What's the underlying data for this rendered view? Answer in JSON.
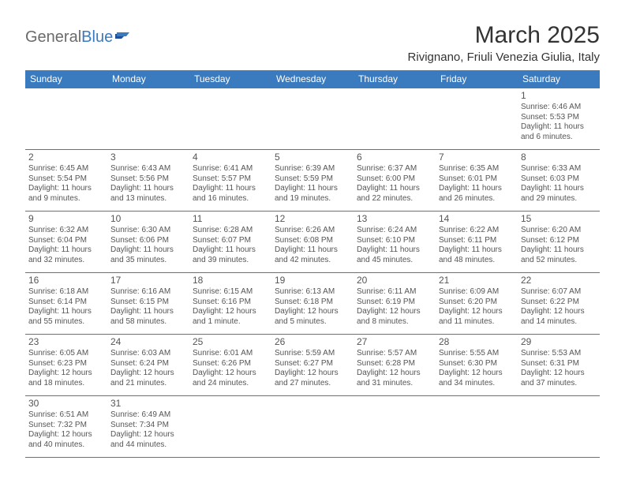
{
  "logo": {
    "part1": "General",
    "part2": "Blue"
  },
  "title": "March 2025",
  "location": "Rivignano, Friuli Venezia Giulia, Italy",
  "colors": {
    "header_bg": "#3a7bbf",
    "header_text": "#ffffff",
    "border": "#3a7bbf",
    "text": "#555555",
    "page_bg": "#ffffff"
  },
  "fonts": {
    "title_size": 30,
    "location_size": 15,
    "dayhdr_size": 12,
    "cell_size": 10
  },
  "day_headers": [
    "Sunday",
    "Monday",
    "Tuesday",
    "Wednesday",
    "Thursday",
    "Friday",
    "Saturday"
  ],
  "weeks": [
    [
      null,
      null,
      null,
      null,
      null,
      null,
      {
        "n": "1",
        "sr": "Sunrise: 6:46 AM",
        "ss": "Sunset: 5:53 PM",
        "d1": "Daylight: 11 hours",
        "d2": "and 6 minutes."
      }
    ],
    [
      {
        "n": "2",
        "sr": "Sunrise: 6:45 AM",
        "ss": "Sunset: 5:54 PM",
        "d1": "Daylight: 11 hours",
        "d2": "and 9 minutes."
      },
      {
        "n": "3",
        "sr": "Sunrise: 6:43 AM",
        "ss": "Sunset: 5:56 PM",
        "d1": "Daylight: 11 hours",
        "d2": "and 13 minutes."
      },
      {
        "n": "4",
        "sr": "Sunrise: 6:41 AM",
        "ss": "Sunset: 5:57 PM",
        "d1": "Daylight: 11 hours",
        "d2": "and 16 minutes."
      },
      {
        "n": "5",
        "sr": "Sunrise: 6:39 AM",
        "ss": "Sunset: 5:59 PM",
        "d1": "Daylight: 11 hours",
        "d2": "and 19 minutes."
      },
      {
        "n": "6",
        "sr": "Sunrise: 6:37 AM",
        "ss": "Sunset: 6:00 PM",
        "d1": "Daylight: 11 hours",
        "d2": "and 22 minutes."
      },
      {
        "n": "7",
        "sr": "Sunrise: 6:35 AM",
        "ss": "Sunset: 6:01 PM",
        "d1": "Daylight: 11 hours",
        "d2": "and 26 minutes."
      },
      {
        "n": "8",
        "sr": "Sunrise: 6:33 AM",
        "ss": "Sunset: 6:03 PM",
        "d1": "Daylight: 11 hours",
        "d2": "and 29 minutes."
      }
    ],
    [
      {
        "n": "9",
        "sr": "Sunrise: 6:32 AM",
        "ss": "Sunset: 6:04 PM",
        "d1": "Daylight: 11 hours",
        "d2": "and 32 minutes."
      },
      {
        "n": "10",
        "sr": "Sunrise: 6:30 AM",
        "ss": "Sunset: 6:06 PM",
        "d1": "Daylight: 11 hours",
        "d2": "and 35 minutes."
      },
      {
        "n": "11",
        "sr": "Sunrise: 6:28 AM",
        "ss": "Sunset: 6:07 PM",
        "d1": "Daylight: 11 hours",
        "d2": "and 39 minutes."
      },
      {
        "n": "12",
        "sr": "Sunrise: 6:26 AM",
        "ss": "Sunset: 6:08 PM",
        "d1": "Daylight: 11 hours",
        "d2": "and 42 minutes."
      },
      {
        "n": "13",
        "sr": "Sunrise: 6:24 AM",
        "ss": "Sunset: 6:10 PM",
        "d1": "Daylight: 11 hours",
        "d2": "and 45 minutes."
      },
      {
        "n": "14",
        "sr": "Sunrise: 6:22 AM",
        "ss": "Sunset: 6:11 PM",
        "d1": "Daylight: 11 hours",
        "d2": "and 48 minutes."
      },
      {
        "n": "15",
        "sr": "Sunrise: 6:20 AM",
        "ss": "Sunset: 6:12 PM",
        "d1": "Daylight: 11 hours",
        "d2": "and 52 minutes."
      }
    ],
    [
      {
        "n": "16",
        "sr": "Sunrise: 6:18 AM",
        "ss": "Sunset: 6:14 PM",
        "d1": "Daylight: 11 hours",
        "d2": "and 55 minutes."
      },
      {
        "n": "17",
        "sr": "Sunrise: 6:16 AM",
        "ss": "Sunset: 6:15 PM",
        "d1": "Daylight: 11 hours",
        "d2": "and 58 minutes."
      },
      {
        "n": "18",
        "sr": "Sunrise: 6:15 AM",
        "ss": "Sunset: 6:16 PM",
        "d1": "Daylight: 12 hours",
        "d2": "and 1 minute."
      },
      {
        "n": "19",
        "sr": "Sunrise: 6:13 AM",
        "ss": "Sunset: 6:18 PM",
        "d1": "Daylight: 12 hours",
        "d2": "and 5 minutes."
      },
      {
        "n": "20",
        "sr": "Sunrise: 6:11 AM",
        "ss": "Sunset: 6:19 PM",
        "d1": "Daylight: 12 hours",
        "d2": "and 8 minutes."
      },
      {
        "n": "21",
        "sr": "Sunrise: 6:09 AM",
        "ss": "Sunset: 6:20 PM",
        "d1": "Daylight: 12 hours",
        "d2": "and 11 minutes."
      },
      {
        "n": "22",
        "sr": "Sunrise: 6:07 AM",
        "ss": "Sunset: 6:22 PM",
        "d1": "Daylight: 12 hours",
        "d2": "and 14 minutes."
      }
    ],
    [
      {
        "n": "23",
        "sr": "Sunrise: 6:05 AM",
        "ss": "Sunset: 6:23 PM",
        "d1": "Daylight: 12 hours",
        "d2": "and 18 minutes."
      },
      {
        "n": "24",
        "sr": "Sunrise: 6:03 AM",
        "ss": "Sunset: 6:24 PM",
        "d1": "Daylight: 12 hours",
        "d2": "and 21 minutes."
      },
      {
        "n": "25",
        "sr": "Sunrise: 6:01 AM",
        "ss": "Sunset: 6:26 PM",
        "d1": "Daylight: 12 hours",
        "d2": "and 24 minutes."
      },
      {
        "n": "26",
        "sr": "Sunrise: 5:59 AM",
        "ss": "Sunset: 6:27 PM",
        "d1": "Daylight: 12 hours",
        "d2": "and 27 minutes."
      },
      {
        "n": "27",
        "sr": "Sunrise: 5:57 AM",
        "ss": "Sunset: 6:28 PM",
        "d1": "Daylight: 12 hours",
        "d2": "and 31 minutes."
      },
      {
        "n": "28",
        "sr": "Sunrise: 5:55 AM",
        "ss": "Sunset: 6:30 PM",
        "d1": "Daylight: 12 hours",
        "d2": "and 34 minutes."
      },
      {
        "n": "29",
        "sr": "Sunrise: 5:53 AM",
        "ss": "Sunset: 6:31 PM",
        "d1": "Daylight: 12 hours",
        "d2": "and 37 minutes."
      }
    ],
    [
      {
        "n": "30",
        "sr": "Sunrise: 6:51 AM",
        "ss": "Sunset: 7:32 PM",
        "d1": "Daylight: 12 hours",
        "d2": "and 40 minutes."
      },
      {
        "n": "31",
        "sr": "Sunrise: 6:49 AM",
        "ss": "Sunset: 7:34 PM",
        "d1": "Daylight: 12 hours",
        "d2": "and 44 minutes."
      },
      null,
      null,
      null,
      null,
      null
    ]
  ]
}
